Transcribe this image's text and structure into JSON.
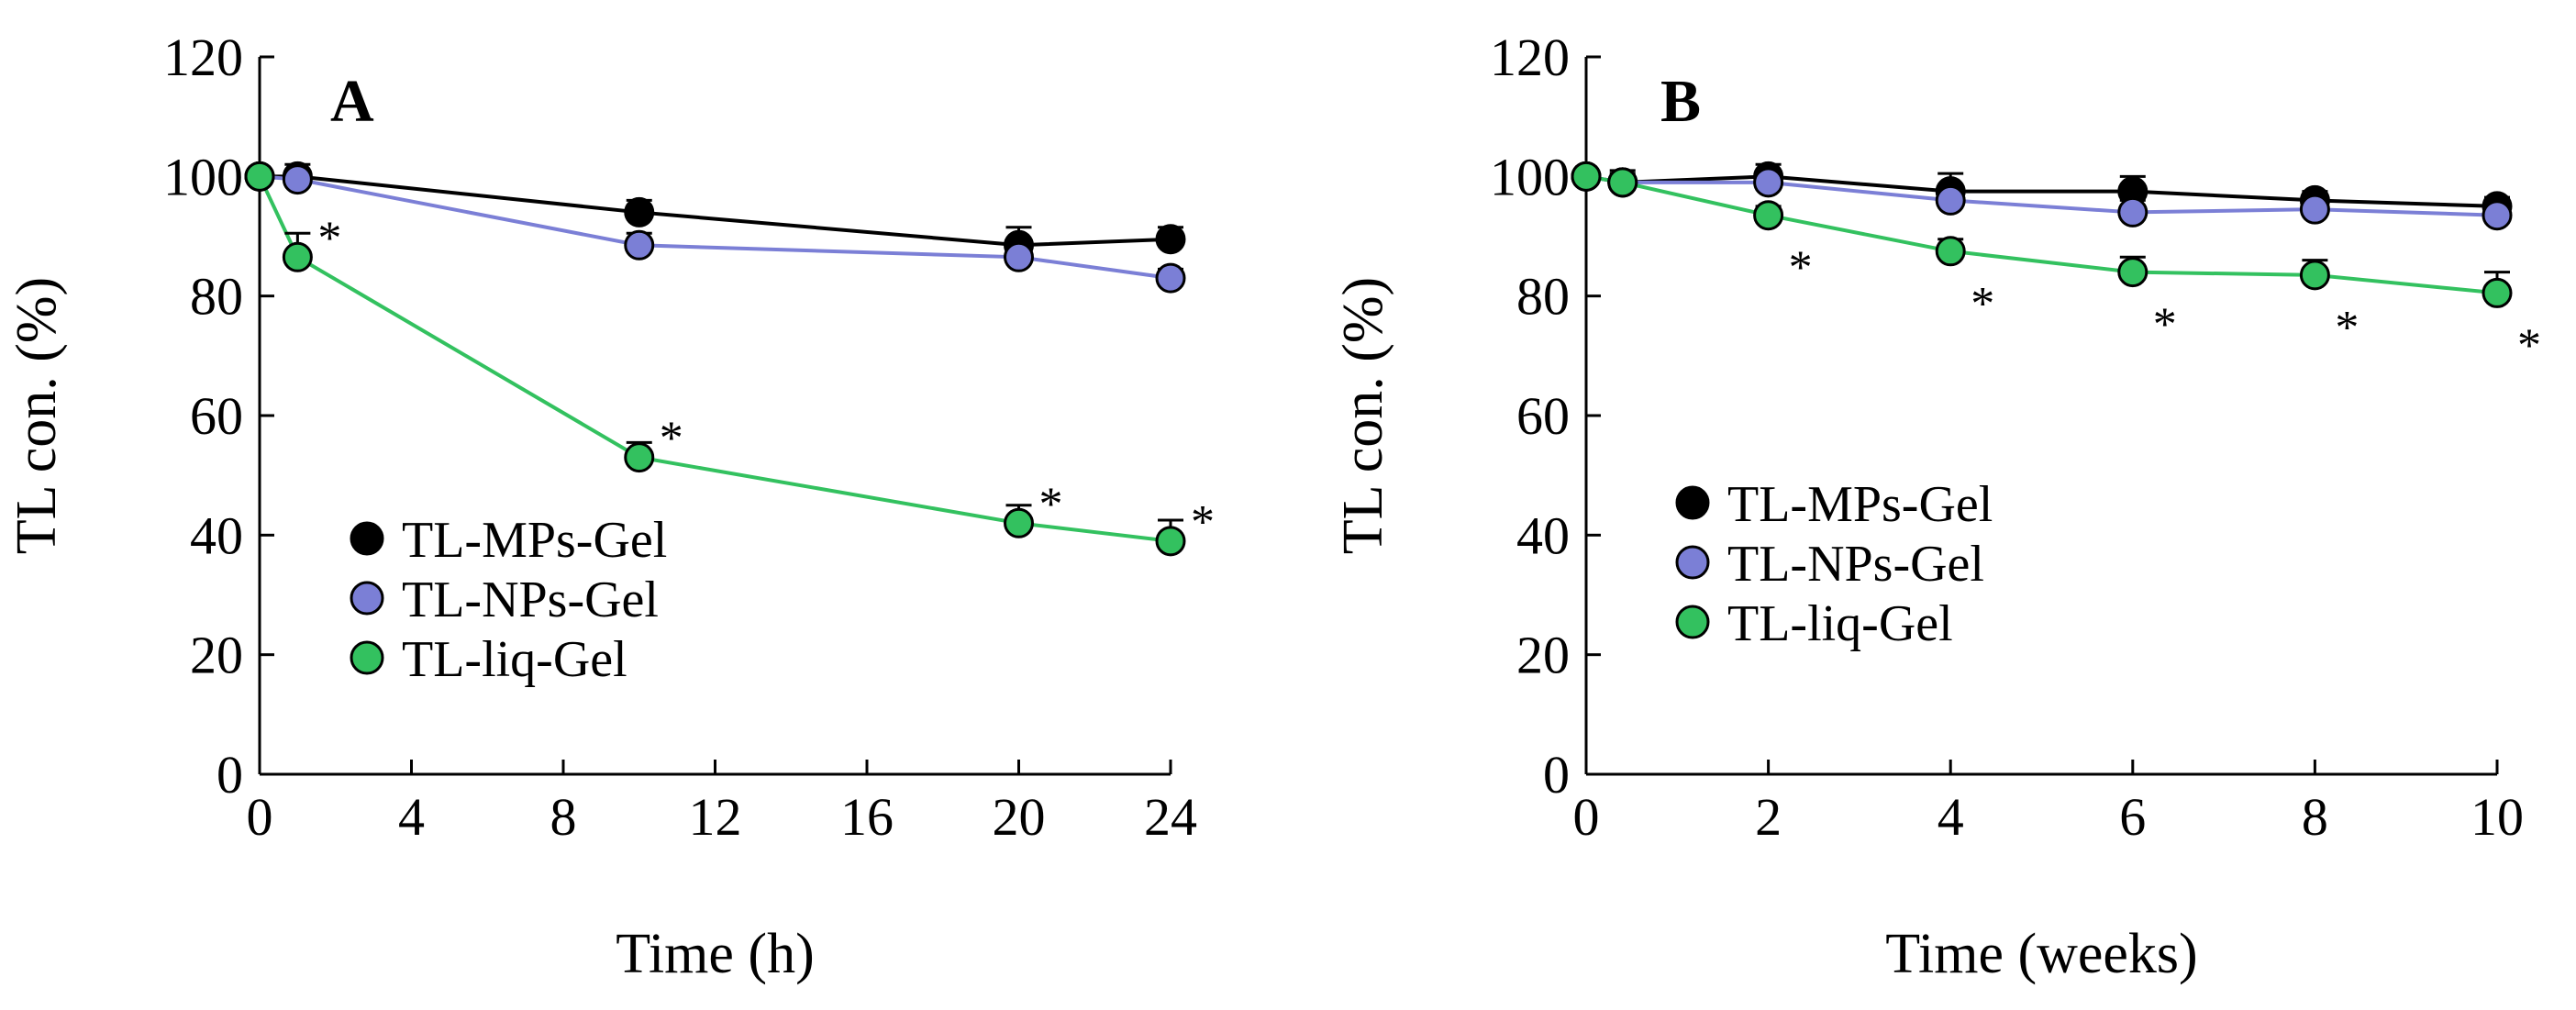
{
  "chart_data": [
    {
      "type": "line",
      "panel_label": "A",
      "xlabel": "Time (h)",
      "ylabel": "TL con. (%)",
      "xlim": [
        0,
        24
      ],
      "ylim": [
        0,
        120
      ],
      "xticks": [
        0,
        4,
        8,
        12,
        16,
        20,
        24
      ],
      "yticks": [
        0,
        20,
        40,
        60,
        80,
        100,
        120
      ],
      "grid": false,
      "legend_position": "bottom-left",
      "series": [
        {
          "name": "TL-MPs-Gel",
          "color": "#000000",
          "x": [
            0,
            1,
            10,
            20,
            24
          ],
          "y": [
            100,
            100,
            94,
            88.5,
            89.5
          ],
          "error": [
            1,
            2,
            2,
            3,
            2
          ],
          "significant": [
            false,
            false,
            false,
            false,
            false
          ]
        },
        {
          "name": "TL-NPs-Gel",
          "color": "#7b7fd6",
          "x": [
            0,
            1,
            10,
            20,
            24
          ],
          "y": [
            100,
            99.5,
            88.5,
            86.5,
            83
          ],
          "error": [
            1,
            1.5,
            2,
            1.5,
            1.5
          ],
          "significant": [
            false,
            false,
            false,
            false,
            false
          ]
        },
        {
          "name": "TL-liq-Gel",
          "color": "#33c15f",
          "x": [
            0,
            1,
            10,
            20,
            24
          ],
          "y": [
            100,
            86.5,
            53,
            42,
            39
          ],
          "error": [
            1,
            4,
            2.5,
            3,
            3.5
          ],
          "significant": [
            false,
            true,
            true,
            true,
            true
          ]
        }
      ],
      "significance_marker": "*"
    },
    {
      "type": "line",
      "panel_label": "B",
      "xlabel": "Time (weeks)",
      "ylabel": "TL con. (%)",
      "xlim": [
        0,
        10
      ],
      "ylim": [
        0,
        120
      ],
      "xticks": [
        0,
        2,
        4,
        6,
        8,
        10
      ],
      "yticks": [
        0,
        20,
        40,
        60,
        80,
        100,
        120
      ],
      "grid": false,
      "legend_position": "bottom-left",
      "series": [
        {
          "name": "TL-MPs-Gel",
          "color": "#000000",
          "x": [
            0,
            0.4,
            2,
            4,
            6,
            8,
            10
          ],
          "y": [
            100,
            99,
            100,
            97.5,
            97.5,
            96,
            95
          ],
          "error": [
            1,
            2,
            2,
            3,
            2.5,
            1.5,
            1.5
          ],
          "significant": [
            false,
            false,
            false,
            false,
            false,
            false,
            false
          ]
        },
        {
          "name": "TL-NPs-Gel",
          "color": "#7b7fd6",
          "x": [
            0,
            0.4,
            2,
            4,
            6,
            8,
            10
          ],
          "y": [
            100,
            99,
            99,
            96,
            94,
            94.5,
            93.5
          ],
          "error": [
            1,
            1.5,
            1.5,
            2,
            2,
            1.5,
            1.5
          ],
          "significant": [
            false,
            false,
            false,
            false,
            false,
            false,
            false
          ]
        },
        {
          "name": "TL-liq-Gel",
          "color": "#33c15f",
          "x": [
            0,
            0.4,
            2,
            4,
            6,
            8,
            10
          ],
          "y": [
            100,
            99,
            93.5,
            87.5,
            84,
            83.5,
            80.5
          ],
          "error": [
            1,
            1,
            1.5,
            2,
            2.5,
            2.5,
            3.5
          ],
          "significant": [
            false,
            false,
            true,
            true,
            true,
            true,
            true
          ]
        }
      ],
      "significance_marker": "*"
    }
  ]
}
